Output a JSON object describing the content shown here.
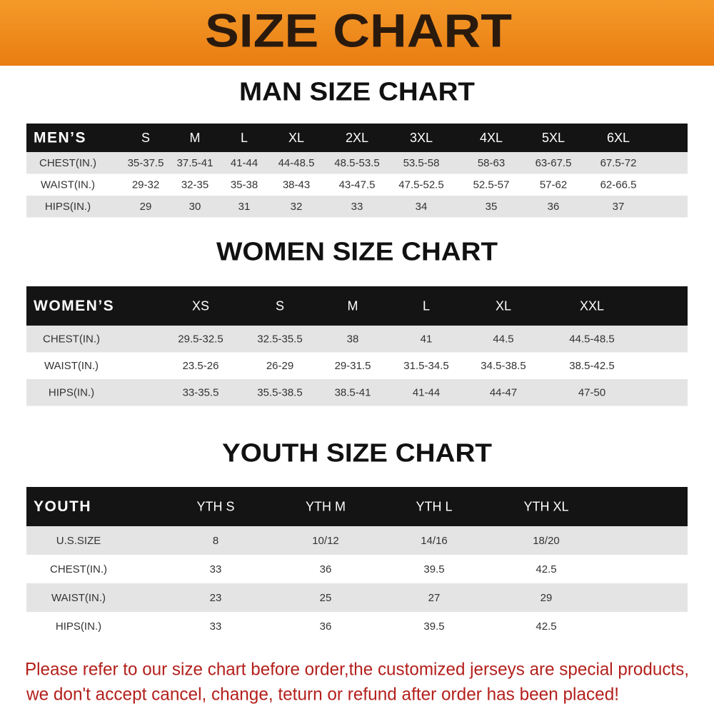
{
  "header": {
    "title": "SIZE CHART"
  },
  "men": {
    "title": "MAN SIZE CHART",
    "columns": [
      "MEN’S",
      "S",
      "M",
      "L",
      "XL",
      "2XL",
      "3XL",
      "4XL",
      "5XL",
      "6XL"
    ],
    "rows": [
      [
        "CHEST(IN.)",
        "35-37.5",
        "37.5-41",
        "41-44",
        "44-48.5",
        "48.5-53.5",
        "53.5-58",
        "58-63",
        "63-67.5",
        "67.5-72"
      ],
      [
        "WAIST(IN.)",
        "29-32",
        "32-35",
        "35-38",
        "38-43",
        "43-47.5",
        "47.5-52.5",
        "52.5-57",
        "57-62",
        "62-66.5"
      ],
      [
        "HIPS(IN.)",
        "29",
        "30",
        "31",
        "32",
        "33",
        "34",
        "35",
        "36",
        "37"
      ]
    ]
  },
  "women": {
    "title": "WOMEN SIZE CHART",
    "columns": [
      "WOMEN’S",
      "XS",
      "S",
      "M",
      "L",
      "XL",
      "XXL"
    ],
    "rows": [
      [
        "CHEST(IN.)",
        "29.5-32.5",
        "32.5-35.5",
        "38",
        "41",
        "44.5",
        "44.5-48.5"
      ],
      [
        "WAIST(IN.)",
        "23.5-26",
        "26-29",
        "29-31.5",
        "31.5-34.5",
        "34.5-38.5",
        "38.5-42.5"
      ],
      [
        "HIPS(IN.)",
        "33-35.5",
        "35.5-38.5",
        "38.5-41",
        "41-44",
        "44-47",
        "47-50"
      ]
    ]
  },
  "youth": {
    "title": "YOUTH SIZE CHART",
    "columns": [
      "YOUTH",
      "YTH S",
      "YTH M",
      "YTH L",
      "YTH XL"
    ],
    "rows": [
      [
        "U.S.SIZE",
        "8",
        "10/12",
        "14/16",
        "18/20"
      ],
      [
        "CHEST(IN.)",
        "33",
        "36",
        "39.5",
        "42.5"
      ],
      [
        "WAIST(IN.)",
        "23",
        "25",
        "27",
        "29"
      ],
      [
        "HIPS(IN.)",
        "33",
        "36",
        "39.5",
        "42.5"
      ]
    ]
  },
  "note": {
    "lines": [
      "Please refer to our size chart before order,the customized jerseys are special products,",
      "we don't accept cancel, change, teturn or refund after order has been placed!"
    ]
  }
}
